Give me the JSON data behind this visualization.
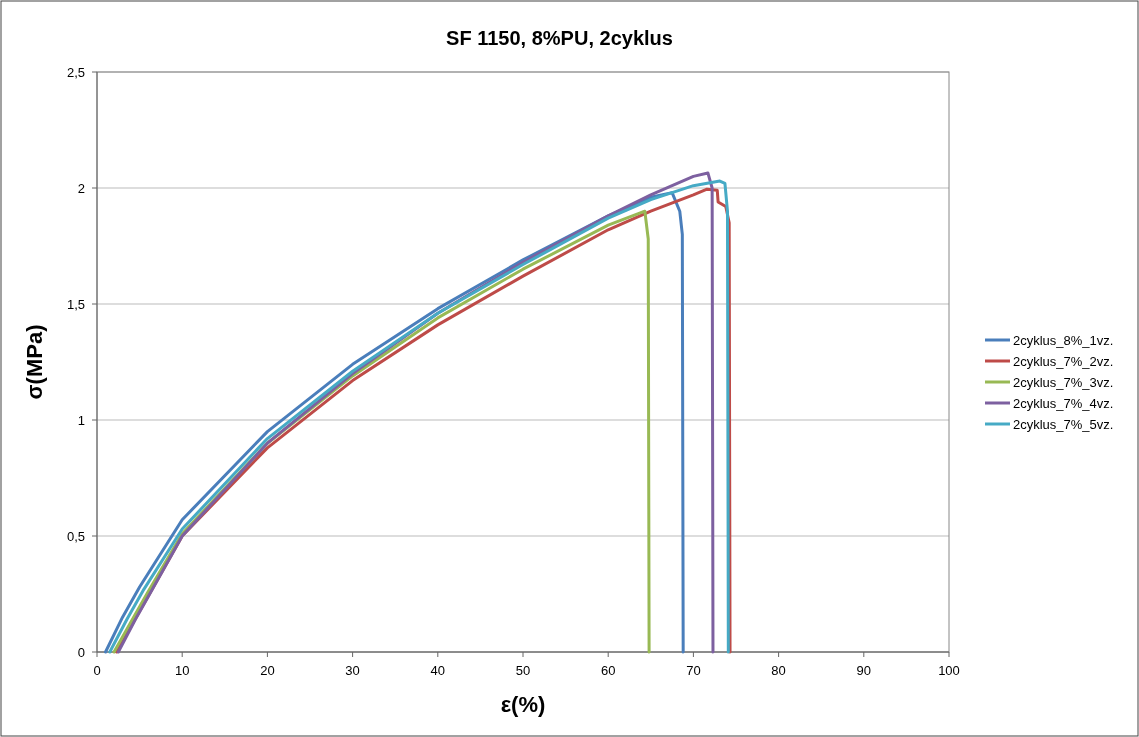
{
  "chart_data": {
    "type": "line",
    "title": "SF 1150, 8%PU, 2cyklus",
    "xlabel": "ε(%)",
    "ylabel": "σ(MPa)",
    "xlim": [
      0,
      100
    ],
    "xticks": [
      0,
      10,
      20,
      30,
      40,
      50,
      60,
      70,
      80,
      90,
      100
    ],
    "ylim": [
      0,
      2.5
    ],
    "yticks": [
      0,
      {
        "value": 0.5,
        "label": "0,5"
      },
      1,
      {
        "value": 1.5,
        "label": "1,5"
      },
      2,
      {
        "value": 2.5,
        "label": "2,5"
      }
    ],
    "grid": "y",
    "legend": "right",
    "marker": "none",
    "line_style": "solid",
    "series": [
      {
        "name": "2cyklus_8%_1vz.",
        "color": "#4a7ebb",
        "x": [
          1,
          3,
          5,
          10,
          20,
          30,
          40,
          50,
          60,
          65,
          67.5,
          68.4,
          68.7,
          68.8
        ],
        "values": [
          0,
          0.15,
          0.28,
          0.57,
          0.95,
          1.24,
          1.48,
          1.69,
          1.88,
          1.96,
          1.98,
          1.9,
          1.8,
          0
        ]
      },
      {
        "name": "2cyklus_7%_2vz.",
        "color": "#be4b48",
        "x": [
          2.3,
          4.3,
          6.3,
          10,
          20,
          30,
          40,
          50,
          60,
          65,
          70,
          71.6,
          72.8,
          72.9,
          73.8,
          74.2,
          74.3
        ],
        "values": [
          0,
          0.13,
          0.26,
          0.5,
          0.88,
          1.17,
          1.41,
          1.62,
          1.82,
          1.9,
          1.97,
          1.995,
          1.99,
          1.94,
          1.92,
          1.85,
          0
        ]
      },
      {
        "name": "2cyklus_7%_3vz.",
        "color": "#98b954",
        "x": [
          2,
          4,
          6,
          10,
          20,
          30,
          40,
          50,
          60,
          64.3,
          64.7,
          64.8
        ],
        "values": [
          0,
          0.13,
          0.26,
          0.51,
          0.9,
          1.19,
          1.44,
          1.65,
          1.84,
          1.9,
          1.78,
          0
        ]
      },
      {
        "name": "2cyklus_7%_4vz.",
        "color": "#7d60a0",
        "x": [
          2.5,
          4.5,
          6.5,
          10,
          20,
          30,
          40,
          50,
          60,
          65,
          70,
          71.7,
          72.2,
          72.3
        ],
        "values": [
          0,
          0.14,
          0.27,
          0.5,
          0.9,
          1.2,
          1.46,
          1.68,
          1.88,
          1.97,
          2.05,
          2.065,
          2,
          0
        ]
      },
      {
        "name": "2cyklus_7%_5vz.",
        "color": "#46aac5",
        "x": [
          1.5,
          3.5,
          5.5,
          10,
          20,
          30,
          40,
          50,
          60,
          65,
          70,
          73.1,
          73.7,
          74,
          74.1
        ],
        "values": [
          0,
          0.14,
          0.27,
          0.53,
          0.92,
          1.21,
          1.46,
          1.67,
          1.87,
          1.95,
          2.01,
          2.03,
          2.02,
          1.9,
          0
        ]
      }
    ]
  }
}
